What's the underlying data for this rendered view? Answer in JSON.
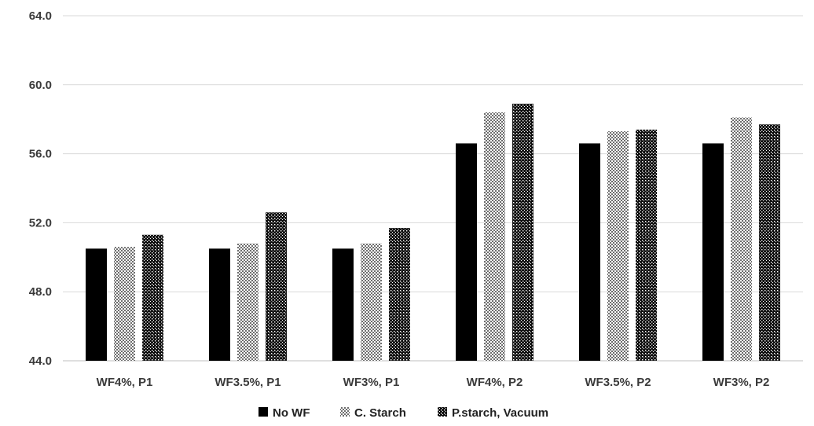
{
  "chart_data": {
    "type": "bar",
    "categories": [
      "WF4%, P1",
      "WF3.5%, P1",
      "WF3%, P1",
      "WF4%, P2",
      "WF3.5%, P2",
      "WF3%, P2"
    ],
    "series": [
      {
        "name": "No WF",
        "values": [
          50.5,
          50.5,
          50.5,
          56.6,
          56.6,
          56.6
        ],
        "pattern": "solid",
        "color": "#000000"
      },
      {
        "name": "C. Starch",
        "values": [
          50.6,
          50.8,
          50.8,
          58.4,
          57.3,
          58.1
        ],
        "pattern": "checker",
        "color": "#8c8c8c"
      },
      {
        "name": "P.starch, Vacuum",
        "values": [
          51.3,
          52.6,
          51.7,
          58.9,
          57.4,
          57.7
        ],
        "pattern": "dots",
        "color": "#333333"
      }
    ],
    "yticks": [
      "44.0",
      "48.0",
      "52.0",
      "56.0",
      "60.0",
      "64.0"
    ],
    "ylim": [
      44,
      64
    ],
    "grid": true,
    "legend_position": "bottom"
  }
}
